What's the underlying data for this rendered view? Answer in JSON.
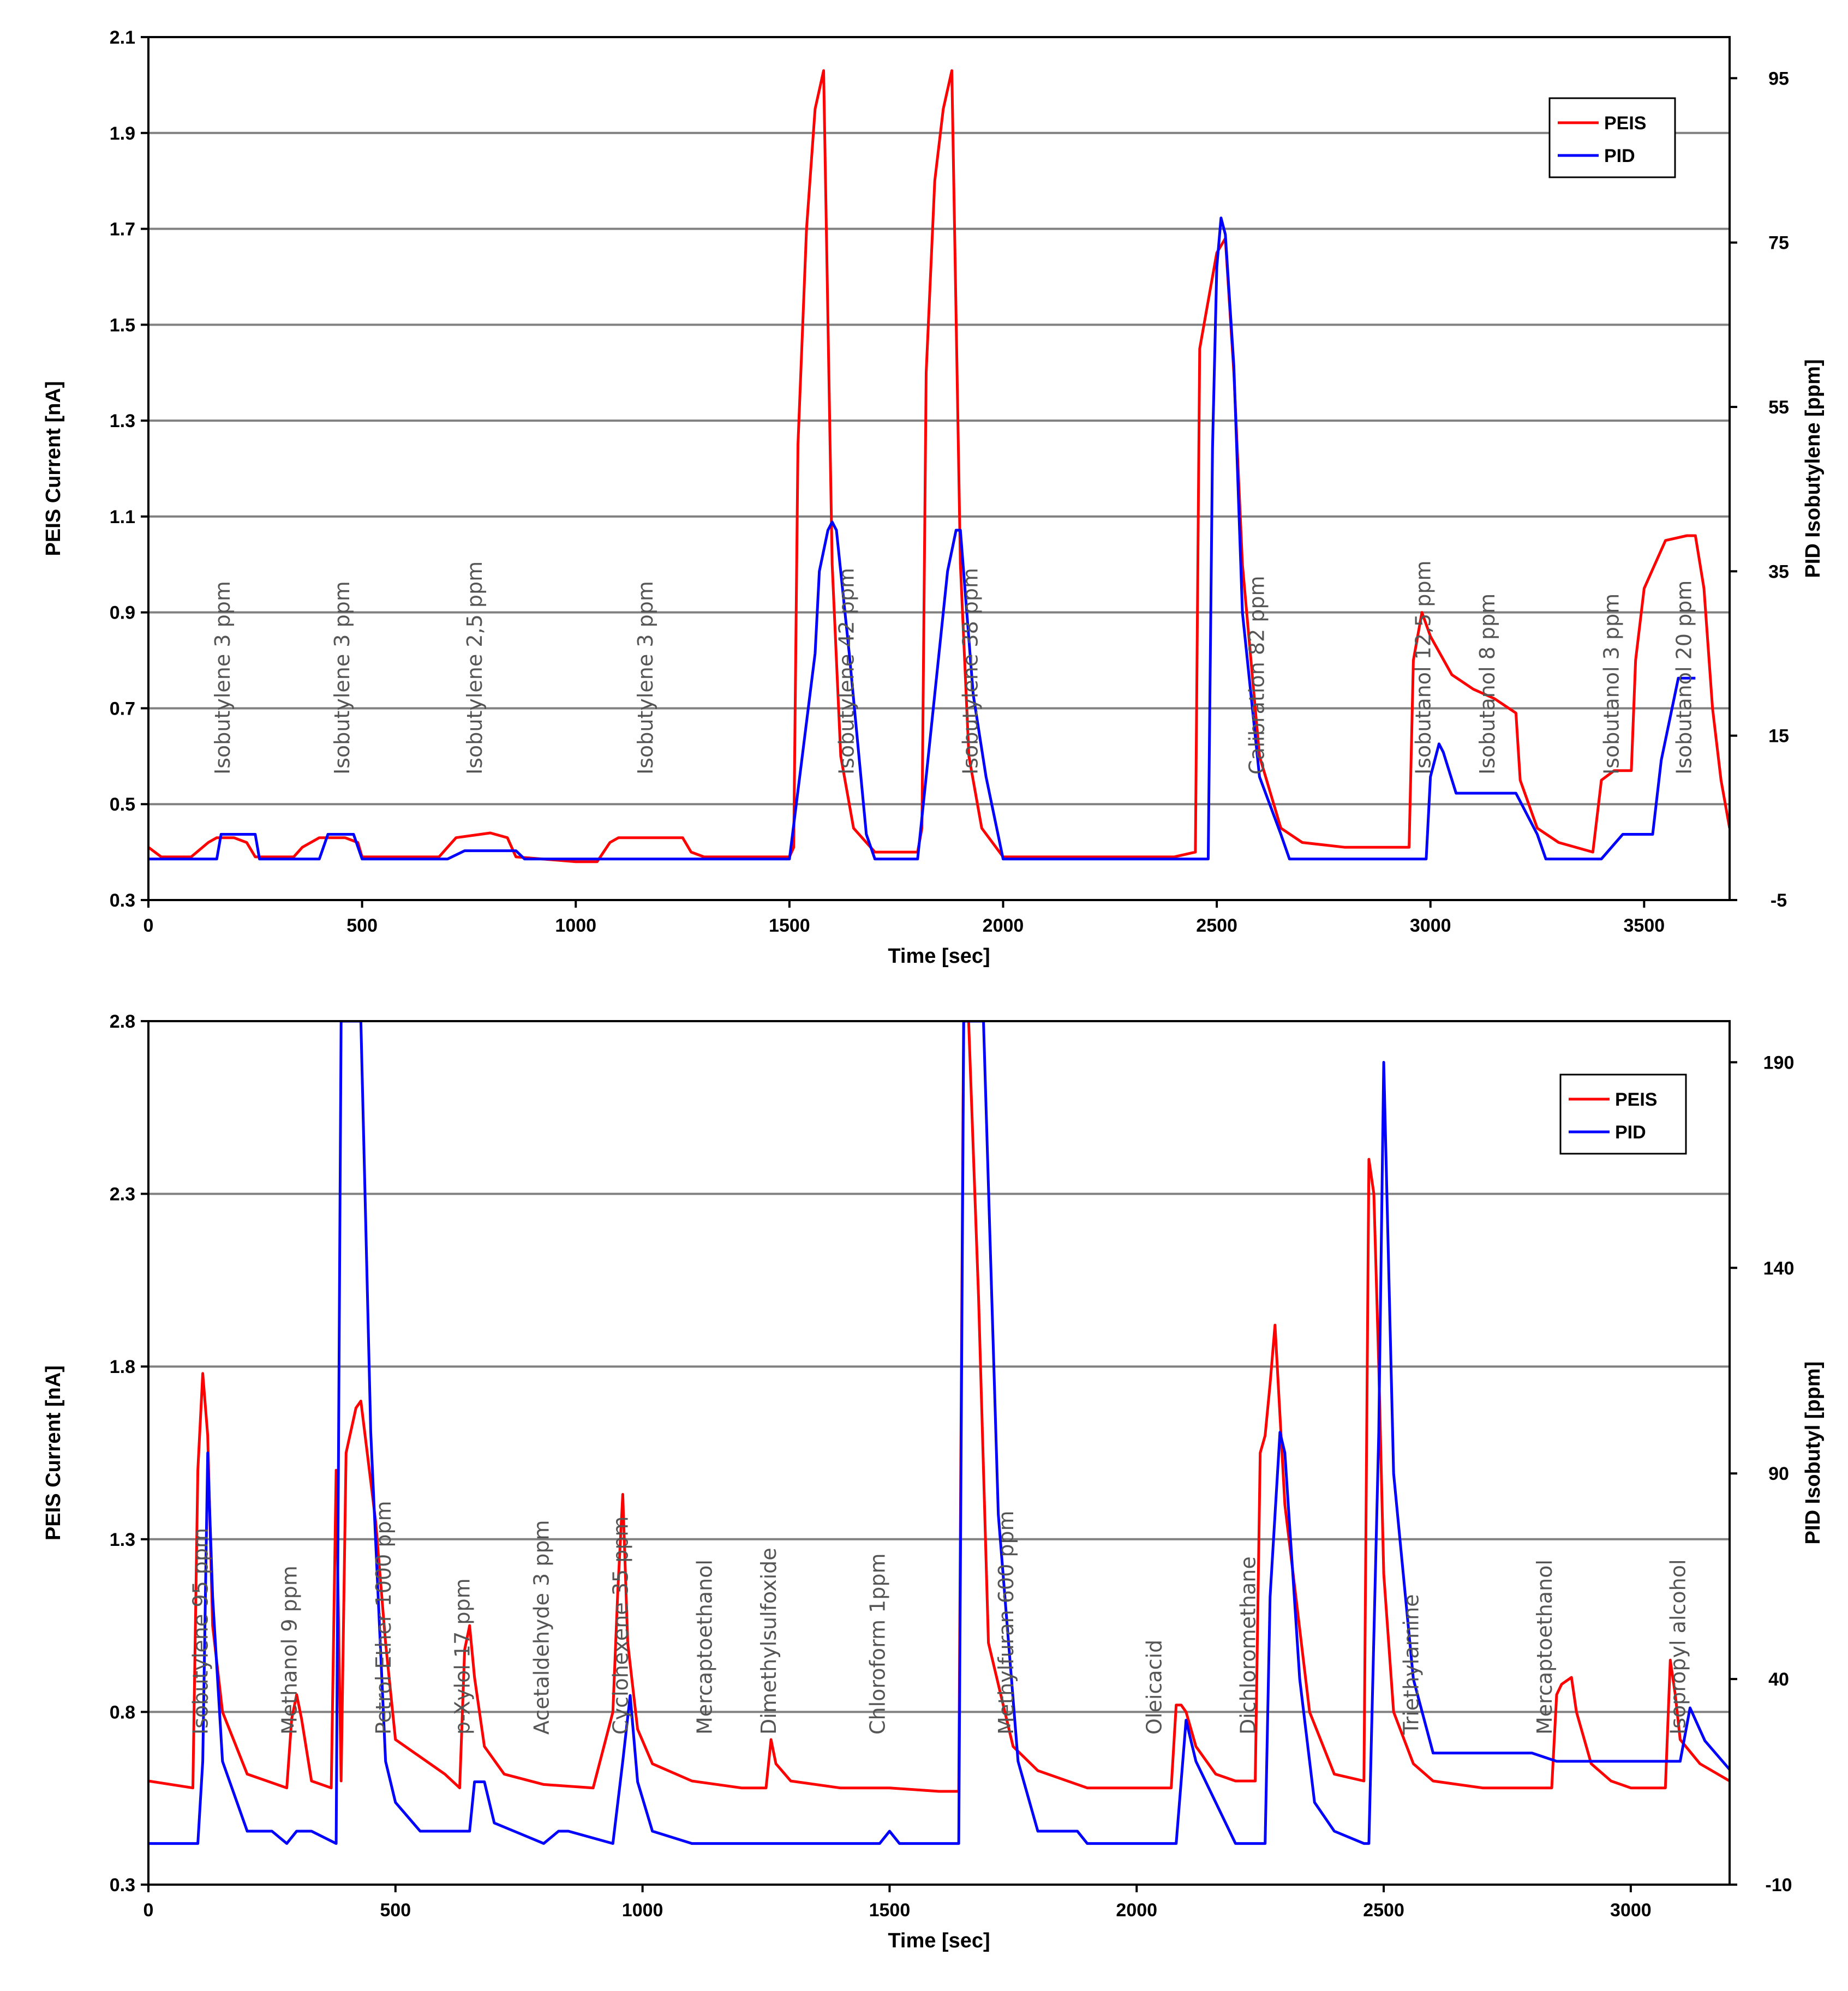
{
  "chart_data": [
    {
      "type": "line",
      "title": "",
      "xlabel": "Time [sec]",
      "ylabel": "PEIS Current [nA]",
      "y2label": "PID Isobutylene [ppm]",
      "xlim": [
        0,
        3700
      ],
      "ylim": [
        0.3,
        2.1
      ],
      "y2lim": [
        -5,
        100
      ],
      "xticks": [
        0,
        500,
        1000,
        1500,
        2000,
        2500,
        3000,
        3500
      ],
      "yticks": [
        0.3,
        0.5,
        0.7,
        0.9,
        1.1,
        1.3,
        1.5,
        1.7,
        1.9,
        2.1
      ],
      "y2ticks": [
        -5,
        15,
        35,
        55,
        75,
        95
      ],
      "xtick_labels": [
        "0",
        "500",
        "1000",
        "1500",
        "2000",
        "2500",
        "3000",
        "3500"
      ],
      "ytick_labels": [
        "0.3",
        "0.5",
        "0.7",
        "0.9",
        "1.1",
        "1.3",
        "1.5",
        "1.7",
        "1.9",
        "2.1"
      ],
      "y2tick_labels": [
        "-5",
        "15",
        "35",
        "55",
        "75",
        "95"
      ],
      "grid": true,
      "legend_position": "top-right",
      "series": [
        {
          "name": "PEIS",
          "axis": "left",
          "color": "#ff0000",
          "x": [
            0,
            30,
            100,
            140,
            160,
            200,
            230,
            250,
            340,
            360,
            400,
            460,
            490,
            500,
            590,
            680,
            720,
            800,
            840,
            860,
            1000,
            1050,
            1080,
            1100,
            1150,
            1250,
            1270,
            1300,
            1500,
            1510,
            1520,
            1540,
            1560,
            1580,
            1600,
            1620,
            1650,
            1700,
            1800,
            1810,
            1820,
            1840,
            1860,
            1880,
            1900,
            1920,
            1950,
            2000,
            2100,
            2200,
            2300,
            2400,
            2450,
            2460,
            2480,
            2500,
            2520,
            2540,
            2560,
            2600,
            2650,
            2700,
            2800,
            2900,
            2950,
            2960,
            2980,
            3000,
            3050,
            3100,
            3150,
            3200,
            3210,
            3250,
            3300,
            3380,
            3400,
            3430,
            3470,
            3480,
            3500,
            3550,
            3600,
            3620,
            3640,
            3660,
            3680,
            3700
          ],
          "values": [
            0.41,
            0.39,
            0.39,
            0.42,
            0.43,
            0.43,
            0.42,
            0.39,
            0.39,
            0.41,
            0.43,
            0.43,
            0.42,
            0.39,
            0.39,
            0.39,
            0.43,
            0.44,
            0.43,
            0.39,
            0.38,
            0.38,
            0.42,
            0.43,
            0.43,
            0.43,
            0.4,
            0.39,
            0.39,
            0.41,
            1.25,
            1.7,
            1.95,
            2.03,
            1.0,
            0.6,
            0.45,
            0.4,
            0.4,
            0.45,
            1.4,
            1.8,
            1.95,
            2.03,
            1.0,
            0.6,
            0.45,
            0.39,
            0.39,
            0.39,
            0.39,
            0.39,
            0.4,
            1.45,
            1.55,
            1.65,
            1.68,
            1.4,
            1.0,
            0.6,
            0.45,
            0.42,
            0.41,
            0.41,
            0.41,
            0.8,
            0.9,
            0.85,
            0.77,
            0.74,
            0.72,
            0.69,
            0.55,
            0.45,
            0.42,
            0.4,
            0.55,
            0.57,
            0.57,
            0.8,
            0.95,
            1.05,
            1.06,
            1.06,
            0.95,
            0.7,
            0.55,
            0.45
          ]
        },
        {
          "name": "PID",
          "axis": "right",
          "color": "#0000ff",
          "x": [
            0,
            160,
            170,
            250,
            260,
            400,
            420,
            480,
            500,
            700,
            740,
            860,
            880,
            1500,
            1560,
            1570,
            1590,
            1600,
            1610,
            1640,
            1680,
            1700,
            1800,
            1850,
            1870,
            1890,
            1900,
            1930,
            1960,
            2000,
            2100,
            2200,
            2300,
            2400,
            2480,
            2490,
            2500,
            2510,
            2520,
            2540,
            2560,
            2600,
            2650,
            2670,
            2900,
            2990,
            3000,
            3020,
            3030,
            3060,
            3200,
            3250,
            3270,
            3400,
            3450,
            3460,
            3520,
            3540,
            3580,
            3620
          ],
          "values": [
            0,
            0,
            3,
            3,
            0,
            0,
            3,
            3,
            0,
            0,
            1,
            1,
            0,
            0,
            25,
            35,
            40,
            41,
            40,
            25,
            3,
            0,
            0,
            25,
            35,
            40,
            40,
            20,
            10,
            0,
            0,
            0,
            0,
            0,
            0,
            50,
            72,
            78,
            76,
            60,
            30,
            10,
            3,
            0,
            0,
            0,
            10,
            14,
            13,
            8,
            8,
            3,
            0,
            0,
            3,
            3,
            3,
            12,
            22,
            22
          ]
        }
      ],
      "annotations": [
        {
          "text": "Isobutylene 3 ppm",
          "x": 190
        },
        {
          "text": "Isobutylene 3 ppm",
          "x": 470
        },
        {
          "text": "Isobutylene 2,5 ppm",
          "x": 780
        },
        {
          "text": "Isobutylene 3 ppm",
          "x": 1180
        },
        {
          "text": "Isobutylene 42 ppm",
          "x": 1650
        },
        {
          "text": "Isobutylene 38 ppm",
          "x": 1940
        },
        {
          "text": "Calibration 82 ppm",
          "x": 2610
        },
        {
          "text": "Isobutanol 12,5 ppm",
          "x": 3000
        },
        {
          "text": "Isobutanol 8 ppm",
          "x": 3150
        },
        {
          "text": "Isobutanol 3 ppm",
          "x": 3440
        },
        {
          "text": "Isobutanol 20 ppm",
          "x": 3610
        }
      ]
    },
    {
      "type": "line",
      "title": "",
      "xlabel": "Time [sec]",
      "ylabel": "PEIS Current [nA]",
      "y2label": "PID Isobutyl [ppm]",
      "xlim": [
        0,
        3200
      ],
      "ylim": [
        0.3,
        2.8
      ],
      "y2lim": [
        -10,
        200
      ],
      "xticks": [
        0,
        500,
        1000,
        1500,
        2000,
        2500,
        3000
      ],
      "yticks": [
        0.3,
        0.8,
        1.3,
        1.8,
        2.3,
        2.8
      ],
      "y2ticks": [
        -10,
        40,
        90,
        140,
        190
      ],
      "xtick_labels": [
        "0",
        "500",
        "1000",
        "1500",
        "2000",
        "2500",
        "3000"
      ],
      "ytick_labels": [
        "0.3",
        "0.8",
        "1.3",
        "1.8",
        "2.3",
        "2.8"
      ],
      "y2tick_labels": [
        "-10",
        "40",
        "90",
        "140",
        "190"
      ],
      "grid": true,
      "legend_position": "top-right",
      "series": [
        {
          "name": "PEIS",
          "axis": "left",
          "color": "#ff0000",
          "x": [
            0,
            90,
            100,
            110,
            120,
            130,
            150,
            200,
            280,
            290,
            300,
            310,
            330,
            370,
            380,
            390,
            400,
            420,
            430,
            460,
            480,
            500,
            600,
            630,
            640,
            650,
            660,
            680,
            720,
            800,
            900,
            940,
            950,
            960,
            970,
            990,
            1020,
            1100,
            1200,
            1250,
            1260,
            1270,
            1300,
            1400,
            1500,
            1600,
            1640,
            1650,
            1660,
            1680,
            1700,
            1750,
            1800,
            1900,
            2000,
            2070,
            2080,
            2090,
            2100,
            2120,
            2160,
            2200,
            2240,
            2250,
            2260,
            2270,
            2280,
            2300,
            2350,
            2400,
            2460,
            2470,
            2480,
            2490,
            2500,
            2520,
            2560,
            2600,
            2700,
            2800,
            2840,
            2850,
            2860,
            2880,
            2890,
            2920,
            2960,
            3000,
            3070,
            3080,
            3090,
            3100,
            3140,
            3200
          ],
          "values": [
            0.6,
            0.58,
            1.5,
            1.78,
            1.6,
            1.05,
            0.8,
            0.62,
            0.58,
            0.78,
            0.85,
            0.78,
            0.6,
            0.58,
            1.5,
            0.6,
            1.55,
            1.68,
            1.7,
            1.35,
            1.0,
            0.72,
            0.62,
            0.58,
            0.98,
            1.05,
            0.9,
            0.7,
            0.62,
            0.59,
            0.58,
            0.8,
            1.15,
            1.43,
            1.0,
            0.75,
            0.65,
            0.6,
            0.58,
            0.58,
            0.72,
            0.65,
            0.6,
            0.58,
            0.58,
            0.57,
            0.57,
            2.85,
            2.8,
            2.0,
            1.0,
            0.7,
            0.63,
            0.58,
            0.58,
            0.58,
            0.82,
            0.82,
            0.8,
            0.7,
            0.62,
            0.6,
            0.6,
            1.55,
            1.6,
            1.75,
            1.92,
            1.4,
            0.8,
            0.62,
            0.6,
            2.4,
            2.3,
            1.8,
            1.2,
            0.8,
            0.65,
            0.6,
            0.58,
            0.58,
            0.58,
            0.85,
            0.88,
            0.9,
            0.8,
            0.65,
            0.6,
            0.58,
            0.58,
            0.95,
            0.85,
            0.72,
            0.65,
            0.6
          ]
        },
        {
          "name": "PID",
          "axis": "right",
          "color": "#0000ff",
          "x": [
            0,
            100,
            110,
            120,
            130,
            150,
            200,
            250,
            280,
            300,
            330,
            380,
            390,
            395,
            425,
            430,
            450,
            480,
            500,
            550,
            650,
            660,
            680,
            700,
            740,
            800,
            830,
            850,
            940,
            960,
            975,
            990,
            1020,
            1100,
            1200,
            1300,
            1400,
            1480,
            1500,
            1520,
            1640,
            1650,
            1660,
            1680,
            1690,
            1720,
            1760,
            1800,
            1880,
            1900,
            2000,
            2080,
            2100,
            2120,
            2200,
            2260,
            2270,
            2290,
            2300,
            2330,
            2360,
            2400,
            2460,
            2470,
            2490,
            2500,
            2520,
            2560,
            2600,
            2800,
            2850,
            2900,
            3080,
            3100,
            3120,
            3150,
            3200
          ],
          "values": [
            0,
            0,
            20,
            95,
            60,
            20,
            3,
            3,
            0,
            3,
            3,
            0,
            200,
            200,
            200,
            200,
            100,
            20,
            10,
            3,
            3,
            15,
            15,
            5,
            3,
            0,
            3,
            3,
            0,
            20,
            36,
            15,
            3,
            0,
            0,
            0,
            0,
            0,
            3,
            0,
            0,
            200,
            200,
            200,
            200,
            80,
            20,
            3,
            3,
            0,
            0,
            0,
            30,
            20,
            0,
            0,
            60,
            100,
            95,
            40,
            10,
            3,
            0,
            0,
            100,
            190,
            90,
            40,
            22,
            22,
            20,
            20,
            20,
            20,
            33,
            25,
            18
          ]
        }
      ],
      "annotations": [
        {
          "text": "Isobutylene 95 ppm",
          "x": 120
        },
        {
          "text": "Methanol 9 ppm",
          "x": 300
        },
        {
          "text": "Petrol Ether 1000 ppm",
          "x": 490
        },
        {
          "text": "p-Xylol 17 ppm",
          "x": 650
        },
        {
          "text": "Acetaldehyde 3 ppm",
          "x": 810
        },
        {
          "text": "Cyclohexene 35 ppm",
          "x": 970
        },
        {
          "text": "Mercaptoethanol",
          "x": 1140
        },
        {
          "text": "Dimethylsulfoxide",
          "x": 1270
        },
        {
          "text": "Chloroform 1ppm",
          "x": 1490
        },
        {
          "text": "Methylfuran 600 ppm",
          "x": 1750
        },
        {
          "text": "Oleicacid",
          "x": 2050
        },
        {
          "text": "Dichloromethane",
          "x": 2240
        },
        {
          "text": "Triethylamine",
          "x": 2570
        },
        {
          "text": "Mercaptoethanol",
          "x": 2840
        },
        {
          "text": "Isopropyl alcohol",
          "x": 3110
        }
      ]
    }
  ]
}
